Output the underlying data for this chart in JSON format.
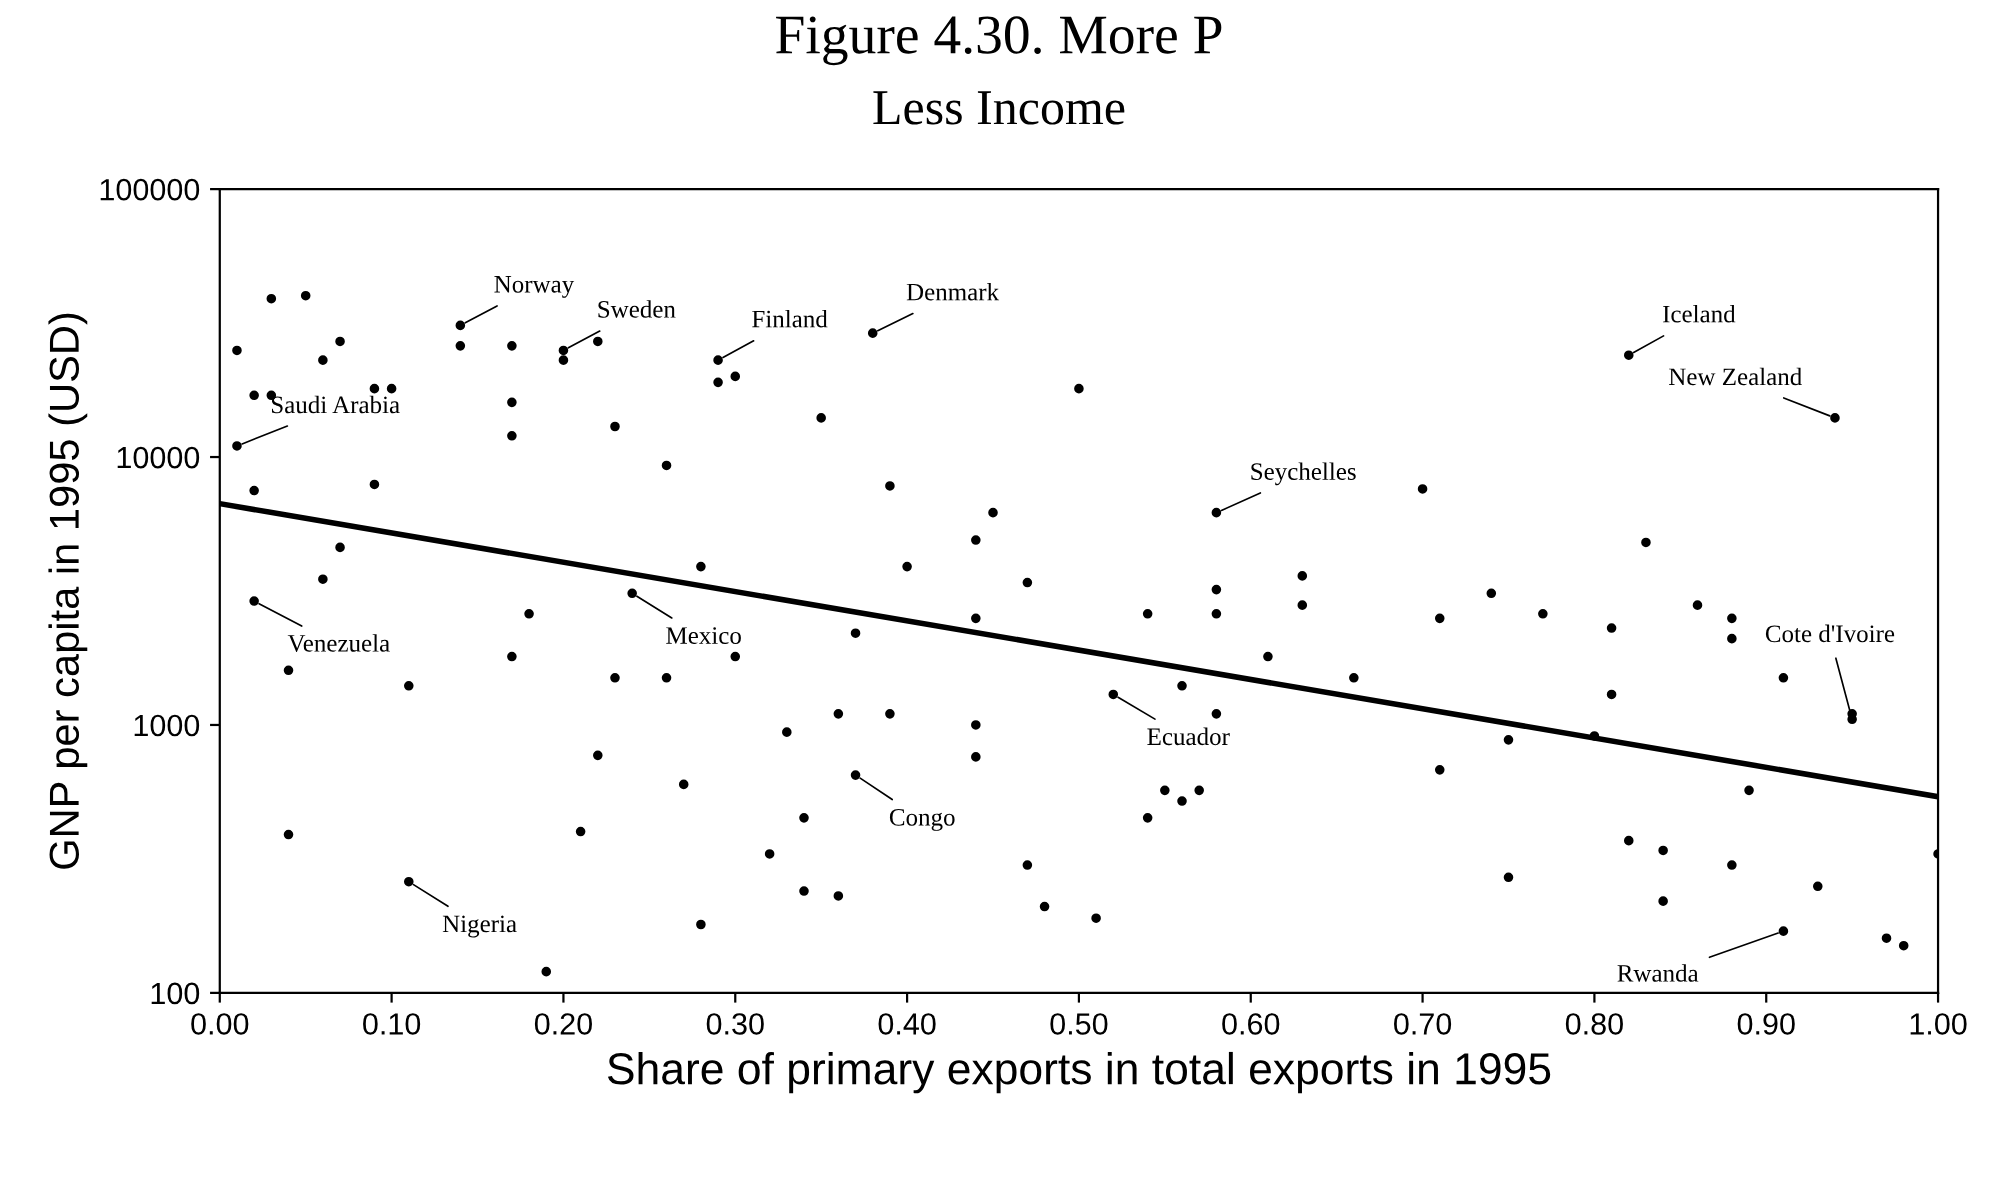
{
  "chart_data": {
    "type": "line",
    "title": "Figure 4.30. More P",
    "subtitle": "Less Income",
    "xlabel": "Share of primary exports in total exports in 1995",
    "ylabel": "GNP per capita in 1995 (USD)",
    "xlim": [
      0,
      1
    ],
    "xticks": [
      {
        "value": 0,
        "label": "0.00"
      },
      {
        "value": 0.1,
        "label": "0.10"
      },
      {
        "value": 0.2,
        "label": "0.20"
      },
      {
        "value": 0.3,
        "label": "0.30"
      },
      {
        "value": 0.4,
        "label": "0.40"
      },
      {
        "value": 0.5,
        "label": "0.50"
      },
      {
        "value": 0.6,
        "label": "0.60"
      },
      {
        "value": 0.7,
        "label": "0.70"
      },
      {
        "value": 0.8,
        "label": "0.80"
      },
      {
        "value": 0.9,
        "label": "0.90"
      },
      {
        "value": 1,
        "label": "1.00"
      }
    ],
    "ylim": [
      100,
      100000
    ],
    "yticks": [
      100,
      1000,
      10000,
      100000
    ],
    "log": "y",
    "grid": false,
    "legend": false,
    "marker": "circle",
    "series": [
      {
        "type": "scatter",
        "color": "#000000",
        "x": [
          0.01,
          0.03,
          0.05,
          0.07,
          0.06,
          0.02,
          0.03,
          0.01,
          0.02,
          0.09,
          0.1,
          0.09,
          0.14,
          0.14,
          0.17,
          0.17,
          0.17,
          0.2,
          0.2,
          0.22,
          0.23,
          0.26,
          0.29,
          0.29,
          0.3,
          0.28,
          0.07,
          0.06,
          0.02,
          0.04,
          0.11,
          0.18,
          0.17,
          0.24,
          0.23,
          0.26,
          0.3,
          0.22,
          0.27,
          0.21,
          0.04,
          0.11,
          0.19,
          0.28,
          0.38,
          0.5,
          0.35,
          0.39,
          0.45,
          0.44,
          0.4,
          0.47,
          0.44,
          0.54,
          0.58,
          0.63,
          0.58,
          0.63,
          0.58,
          0.61,
          0.66,
          0.7,
          0.37,
          0.36,
          0.39,
          0.33,
          0.44,
          0.44,
          0.52,
          0.56,
          0.58,
          0.55,
          0.57,
          0.56,
          0.54,
          0.37,
          0.34,
          0.32,
          0.34,
          0.36,
          0.47,
          0.48,
          0.51,
          0.82,
          0.94,
          0.83,
          0.86,
          0.88,
          0.88,
          0.74,
          0.77,
          0.81,
          0.71,
          0.91,
          0.95,
          0.95,
          0.81,
          0.8,
          0.75,
          0.71,
          0.89,
          1.0,
          0.82,
          0.84,
          0.88,
          0.93,
          0.75,
          0.84,
          0.91,
          0.97,
          0.98
        ],
        "values": [
          25000,
          39000,
          40000,
          27000,
          23000,
          17000,
          17000,
          11000,
          7500,
          18000,
          18000,
          7900,
          31000,
          26000,
          26000,
          16000,
          12000,
          25000,
          23000,
          27000,
          13000,
          9300,
          23000,
          19000,
          20000,
          3900,
          4600,
          3500,
          2900,
          1600,
          1400,
          2600,
          1800,
          3100,
          1500,
          1500,
          1800,
          770,
          600,
          400,
          390,
          260,
          120,
          180,
          29000,
          18000,
          14000,
          7800,
          6200,
          4900,
          3900,
          3400,
          2500,
          2600,
          6200,
          3600,
          3200,
          2800,
          2600,
          1800,
          1500,
          7600,
          2200,
          1100,
          1100,
          940,
          1000,
          760,
          1300,
          1400,
          1100,
          570,
          570,
          520,
          450,
          650,
          450,
          330,
          240,
          230,
          300,
          210,
          190,
          24000,
          14000,
          4800,
          2800,
          2500,
          2100,
          3100,
          2600,
          2300,
          2500,
          1500,
          1100,
          1050,
          1300,
          910,
          880,
          680,
          570,
          330,
          370,
          340,
          300,
          250,
          270,
          220,
          170,
          160,
          150
        ]
      },
      {
        "color": "#000000",
        "x": [
          0,
          1
        ],
        "values": [
          6700,
          540
        ],
        "marker": "none",
        "line_style": "solid"
      }
    ],
    "annotations": [
      {
        "text": "Norway",
        "x": 0.14,
        "y": 31000
      },
      {
        "text": "Sweden",
        "x": 0.2,
        "y": 25000
      },
      {
        "text": "Finland",
        "x": 0.29,
        "y": 23000
      },
      {
        "text": "Denmark",
        "x": 0.38,
        "y": 29000
      },
      {
        "text": "Seychelles",
        "x": 0.58,
        "y": 6200
      },
      {
        "text": "Iceland",
        "x": 0.82,
        "y": 24000
      },
      {
        "text": "New Zealand",
        "x": 0.94,
        "y": 14000
      },
      {
        "text": "Saudi Arabia",
        "x": 0.01,
        "y": 11000
      },
      {
        "text": "Mexico",
        "x": 0.24,
        "y": 3100
      },
      {
        "text": "Venezuela",
        "x": 0.02,
        "y": 2900
      },
      {
        "text": "Nigeria",
        "x": 0.11,
        "y": 260
      },
      {
        "text": "Congo",
        "x": 0.37,
        "y": 650
      },
      {
        "text": "Ecuador",
        "x": 0.52,
        "y": 1300
      },
      {
        "text": "Cote d'Ivoire",
        "x": 0.95,
        "y": 1050
      },
      {
        "text": "Rwanda",
        "x": 0.91,
        "y": 170
      }
    ]
  }
}
